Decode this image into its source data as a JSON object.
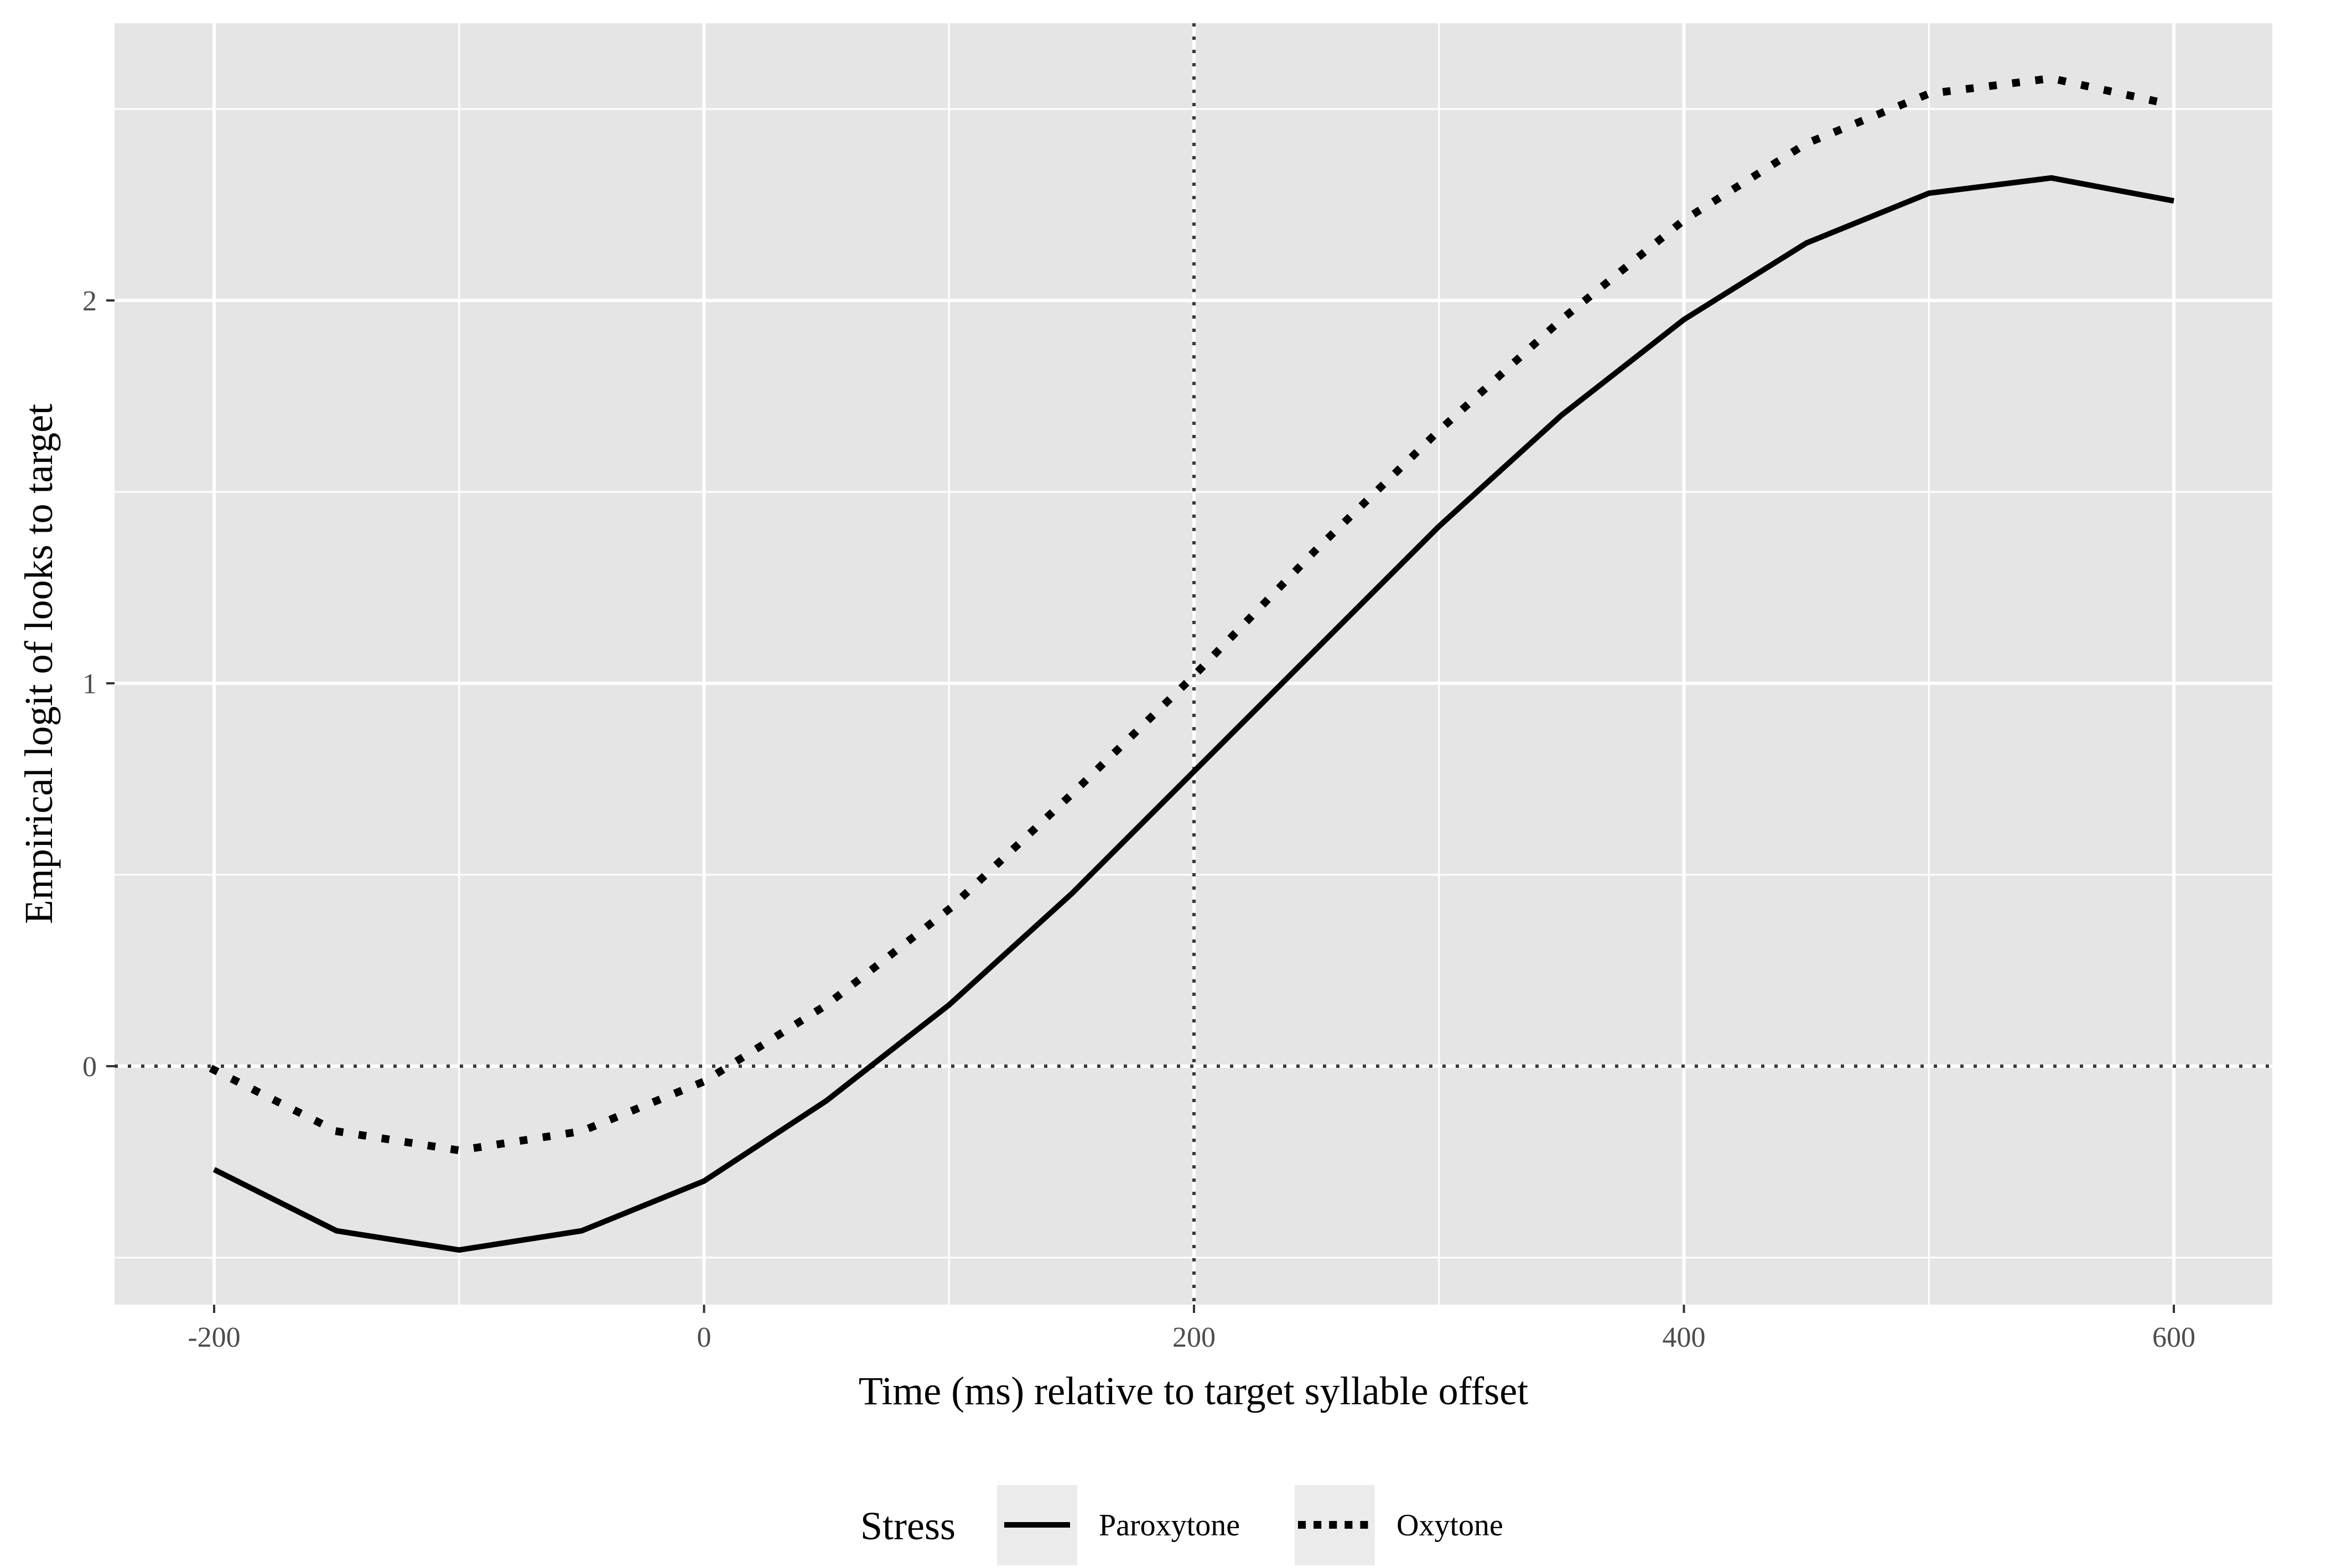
{
  "chart_data": {
    "type": "line",
    "xlabel": "Time (ms) relative to target syllable offset",
    "ylabel": "Empirical logit of looks to target",
    "xlim": [
      -200,
      600
    ],
    "ylim": [
      -0.5,
      2.5
    ],
    "x_ticks": [
      -200,
      0,
      200,
      400,
      600
    ],
    "y_ticks": [
      0,
      1,
      2
    ],
    "x_tick_labels": [
      "-200",
      "0",
      "200",
      "400",
      "600"
    ],
    "y_tick_labels": [
      "0",
      "1",
      "2"
    ],
    "grid": true,
    "reference_lines": [
      {
        "axis": "x",
        "value": 200,
        "style": "dotted"
      },
      {
        "axis": "y",
        "value": 0,
        "style": "dotted"
      }
    ],
    "legend": {
      "title": "Stress",
      "placement": "bottom",
      "entries": [
        {
          "label": "Paroxytone",
          "style": "solid"
        },
        {
          "label": "Oxytone",
          "style": "dotted"
        }
      ]
    },
    "x": [
      -200,
      -150,
      -100,
      -50,
      0,
      50,
      100,
      150,
      200,
      250,
      300,
      350,
      400,
      450,
      500,
      550,
      600
    ],
    "series": [
      {
        "name": "Paroxytone",
        "style": "solid",
        "color": "#000000",
        "values": [
          -0.27,
          -0.43,
          -0.48,
          -0.43,
          -0.3,
          -0.09,
          0.16,
          0.45,
          0.77,
          1.09,
          1.41,
          1.7,
          1.95,
          2.15,
          2.28,
          2.32,
          2.26
        ]
      },
      {
        "name": "Oxytone",
        "style": "dotted",
        "color": "#000000",
        "values": [
          -0.01,
          -0.17,
          -0.22,
          -0.17,
          -0.04,
          0.16,
          0.41,
          0.71,
          1.02,
          1.35,
          1.66,
          1.95,
          2.21,
          2.41,
          2.54,
          2.58,
          2.51
        ]
      }
    ],
    "panel_color": "#e5e5e5",
    "grid_color": "#ffffff"
  }
}
